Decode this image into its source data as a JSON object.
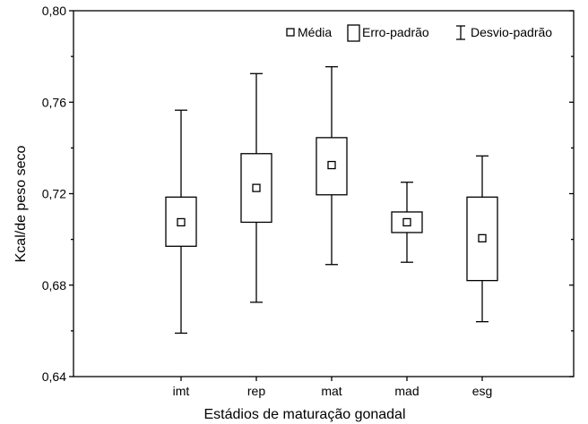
{
  "chart_data": {
    "type": "box",
    "title": "",
    "xlabel": "Estádios de maturação gonadal",
    "ylabel": "Kcal/de peso seco",
    "ylim": [
      0.64,
      0.8
    ],
    "yticks": [
      0.64,
      0.68,
      0.72,
      0.76,
      0.8
    ],
    "ytick_labels": [
      "0,64",
      "0,68",
      "0,72",
      "0,76",
      "0,80"
    ],
    "categories": [
      "imt",
      "rep",
      "mat",
      "mad",
      "esg"
    ],
    "mean": [
      0.7075,
      0.7225,
      0.7325,
      0.7075,
      0.7005
    ],
    "se_low": [
      0.697,
      0.7075,
      0.7195,
      0.703,
      0.682
    ],
    "se_high": [
      0.7185,
      0.7375,
      0.7445,
      0.712,
      0.7185
    ],
    "sd_low": [
      0.659,
      0.6725,
      0.689,
      0.69,
      0.664
    ],
    "sd_high": [
      0.7565,
      0.7725,
      0.7755,
      0.725,
      0.7365
    ],
    "legend": {
      "position": "top-right",
      "entries": [
        "Média",
        "Erro-padrão",
        "Desvio-padrão"
      ]
    },
    "grid": false
  }
}
